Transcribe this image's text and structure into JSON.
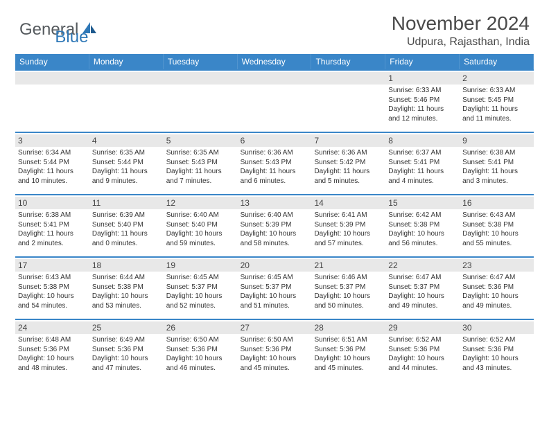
{
  "logo": {
    "general": "General",
    "blue": "Blue"
  },
  "title": "November 2024",
  "location": "Udpura, Rajasthan, India",
  "colors": {
    "header_bg": "#3a86c8",
    "header_text": "#ffffff",
    "daynum_bg": "#e8e8e8",
    "text": "#333333",
    "border": "#3a86c8",
    "logo_gray": "#555a5e",
    "logo_blue": "#2f78b7"
  },
  "dayHeaders": [
    "Sunday",
    "Monday",
    "Tuesday",
    "Wednesday",
    "Thursday",
    "Friday",
    "Saturday"
  ],
  "weeks": [
    [
      {
        "empty": true
      },
      {
        "empty": true
      },
      {
        "empty": true
      },
      {
        "empty": true
      },
      {
        "empty": true
      },
      {
        "num": "1",
        "sunrise": "Sunrise: 6:33 AM",
        "sunset": "Sunset: 5:46 PM",
        "daylight1": "Daylight: 11 hours",
        "daylight2": "and 12 minutes."
      },
      {
        "num": "2",
        "sunrise": "Sunrise: 6:33 AM",
        "sunset": "Sunset: 5:45 PM",
        "daylight1": "Daylight: 11 hours",
        "daylight2": "and 11 minutes."
      }
    ],
    [
      {
        "num": "3",
        "sunrise": "Sunrise: 6:34 AM",
        "sunset": "Sunset: 5:44 PM",
        "daylight1": "Daylight: 11 hours",
        "daylight2": "and 10 minutes."
      },
      {
        "num": "4",
        "sunrise": "Sunrise: 6:35 AM",
        "sunset": "Sunset: 5:44 PM",
        "daylight1": "Daylight: 11 hours",
        "daylight2": "and 9 minutes."
      },
      {
        "num": "5",
        "sunrise": "Sunrise: 6:35 AM",
        "sunset": "Sunset: 5:43 PM",
        "daylight1": "Daylight: 11 hours",
        "daylight2": "and 7 minutes."
      },
      {
        "num": "6",
        "sunrise": "Sunrise: 6:36 AM",
        "sunset": "Sunset: 5:43 PM",
        "daylight1": "Daylight: 11 hours",
        "daylight2": "and 6 minutes."
      },
      {
        "num": "7",
        "sunrise": "Sunrise: 6:36 AM",
        "sunset": "Sunset: 5:42 PM",
        "daylight1": "Daylight: 11 hours",
        "daylight2": "and 5 minutes."
      },
      {
        "num": "8",
        "sunrise": "Sunrise: 6:37 AM",
        "sunset": "Sunset: 5:41 PM",
        "daylight1": "Daylight: 11 hours",
        "daylight2": "and 4 minutes."
      },
      {
        "num": "9",
        "sunrise": "Sunrise: 6:38 AM",
        "sunset": "Sunset: 5:41 PM",
        "daylight1": "Daylight: 11 hours",
        "daylight2": "and 3 minutes."
      }
    ],
    [
      {
        "num": "10",
        "sunrise": "Sunrise: 6:38 AM",
        "sunset": "Sunset: 5:41 PM",
        "daylight1": "Daylight: 11 hours",
        "daylight2": "and 2 minutes."
      },
      {
        "num": "11",
        "sunrise": "Sunrise: 6:39 AM",
        "sunset": "Sunset: 5:40 PM",
        "daylight1": "Daylight: 11 hours",
        "daylight2": "and 0 minutes."
      },
      {
        "num": "12",
        "sunrise": "Sunrise: 6:40 AM",
        "sunset": "Sunset: 5:40 PM",
        "daylight1": "Daylight: 10 hours",
        "daylight2": "and 59 minutes."
      },
      {
        "num": "13",
        "sunrise": "Sunrise: 6:40 AM",
        "sunset": "Sunset: 5:39 PM",
        "daylight1": "Daylight: 10 hours",
        "daylight2": "and 58 minutes."
      },
      {
        "num": "14",
        "sunrise": "Sunrise: 6:41 AM",
        "sunset": "Sunset: 5:39 PM",
        "daylight1": "Daylight: 10 hours",
        "daylight2": "and 57 minutes."
      },
      {
        "num": "15",
        "sunrise": "Sunrise: 6:42 AM",
        "sunset": "Sunset: 5:38 PM",
        "daylight1": "Daylight: 10 hours",
        "daylight2": "and 56 minutes."
      },
      {
        "num": "16",
        "sunrise": "Sunrise: 6:43 AM",
        "sunset": "Sunset: 5:38 PM",
        "daylight1": "Daylight: 10 hours",
        "daylight2": "and 55 minutes."
      }
    ],
    [
      {
        "num": "17",
        "sunrise": "Sunrise: 6:43 AM",
        "sunset": "Sunset: 5:38 PM",
        "daylight1": "Daylight: 10 hours",
        "daylight2": "and 54 minutes."
      },
      {
        "num": "18",
        "sunrise": "Sunrise: 6:44 AM",
        "sunset": "Sunset: 5:38 PM",
        "daylight1": "Daylight: 10 hours",
        "daylight2": "and 53 minutes."
      },
      {
        "num": "19",
        "sunrise": "Sunrise: 6:45 AM",
        "sunset": "Sunset: 5:37 PM",
        "daylight1": "Daylight: 10 hours",
        "daylight2": "and 52 minutes."
      },
      {
        "num": "20",
        "sunrise": "Sunrise: 6:45 AM",
        "sunset": "Sunset: 5:37 PM",
        "daylight1": "Daylight: 10 hours",
        "daylight2": "and 51 minutes."
      },
      {
        "num": "21",
        "sunrise": "Sunrise: 6:46 AM",
        "sunset": "Sunset: 5:37 PM",
        "daylight1": "Daylight: 10 hours",
        "daylight2": "and 50 minutes."
      },
      {
        "num": "22",
        "sunrise": "Sunrise: 6:47 AM",
        "sunset": "Sunset: 5:37 PM",
        "daylight1": "Daylight: 10 hours",
        "daylight2": "and 49 minutes."
      },
      {
        "num": "23",
        "sunrise": "Sunrise: 6:47 AM",
        "sunset": "Sunset: 5:36 PM",
        "daylight1": "Daylight: 10 hours",
        "daylight2": "and 49 minutes."
      }
    ],
    [
      {
        "num": "24",
        "sunrise": "Sunrise: 6:48 AM",
        "sunset": "Sunset: 5:36 PM",
        "daylight1": "Daylight: 10 hours",
        "daylight2": "and 48 minutes."
      },
      {
        "num": "25",
        "sunrise": "Sunrise: 6:49 AM",
        "sunset": "Sunset: 5:36 PM",
        "daylight1": "Daylight: 10 hours",
        "daylight2": "and 47 minutes."
      },
      {
        "num": "26",
        "sunrise": "Sunrise: 6:50 AM",
        "sunset": "Sunset: 5:36 PM",
        "daylight1": "Daylight: 10 hours",
        "daylight2": "and 46 minutes."
      },
      {
        "num": "27",
        "sunrise": "Sunrise: 6:50 AM",
        "sunset": "Sunset: 5:36 PM",
        "daylight1": "Daylight: 10 hours",
        "daylight2": "and 45 minutes."
      },
      {
        "num": "28",
        "sunrise": "Sunrise: 6:51 AM",
        "sunset": "Sunset: 5:36 PM",
        "daylight1": "Daylight: 10 hours",
        "daylight2": "and 45 minutes."
      },
      {
        "num": "29",
        "sunrise": "Sunrise: 6:52 AM",
        "sunset": "Sunset: 5:36 PM",
        "daylight1": "Daylight: 10 hours",
        "daylight2": "and 44 minutes."
      },
      {
        "num": "30",
        "sunrise": "Sunrise: 6:52 AM",
        "sunset": "Sunset: 5:36 PM",
        "daylight1": "Daylight: 10 hours",
        "daylight2": "and 43 minutes."
      }
    ]
  ]
}
